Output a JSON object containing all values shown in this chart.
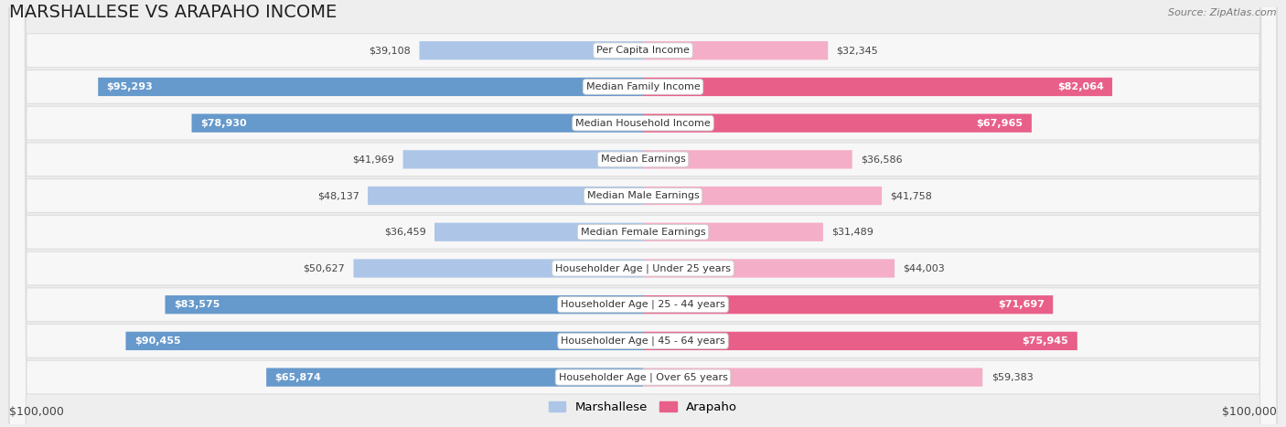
{
  "title": "MARSHALLESE VS ARAPAHO INCOME",
  "source": "Source: ZipAtlas.com",
  "categories": [
    "Per Capita Income",
    "Median Family Income",
    "Median Household Income",
    "Median Earnings",
    "Median Male Earnings",
    "Median Female Earnings",
    "Householder Age | Under 25 years",
    "Householder Age | 25 - 44 years",
    "Householder Age | 45 - 64 years",
    "Householder Age | Over 65 years"
  ],
  "marshallese_values": [
    39108,
    95293,
    78930,
    41969,
    48137,
    36459,
    50627,
    83575,
    90455,
    65874
  ],
  "arapaho_values": [
    32345,
    82064,
    67965,
    36586,
    41758,
    31489,
    44003,
    71697,
    75945,
    59383
  ],
  "marshallese_labels": [
    "$39,108",
    "$95,293",
    "$78,930",
    "$41,969",
    "$48,137",
    "$36,459",
    "$50,627",
    "$83,575",
    "$90,455",
    "$65,874"
  ],
  "arapaho_labels": [
    "$32,345",
    "$82,064",
    "$67,965",
    "$36,586",
    "$41,758",
    "$31,489",
    "$44,003",
    "$71,697",
    "$75,945",
    "$59,383"
  ],
  "max_value": 100000,
  "marshallese_color_light": "#adc6e8",
  "marshallese_color_dark": "#6699cc",
  "arapaho_color_light": "#f4aec8",
  "arapaho_color_dark": "#e8608a",
  "background_color": "#eeeeee",
  "row_bg_color": "#f7f7f7",
  "row_border_color": "#dddddd",
  "dark_threshold": 62000,
  "x_axis_label_left": "$100,000",
  "x_axis_label_right": "$100,000",
  "legend_marshallese": "Marshallese",
  "legend_arapaho": "Arapaho",
  "title_fontsize": 14,
  "source_fontsize": 8,
  "label_fontsize": 8,
  "category_fontsize": 8
}
